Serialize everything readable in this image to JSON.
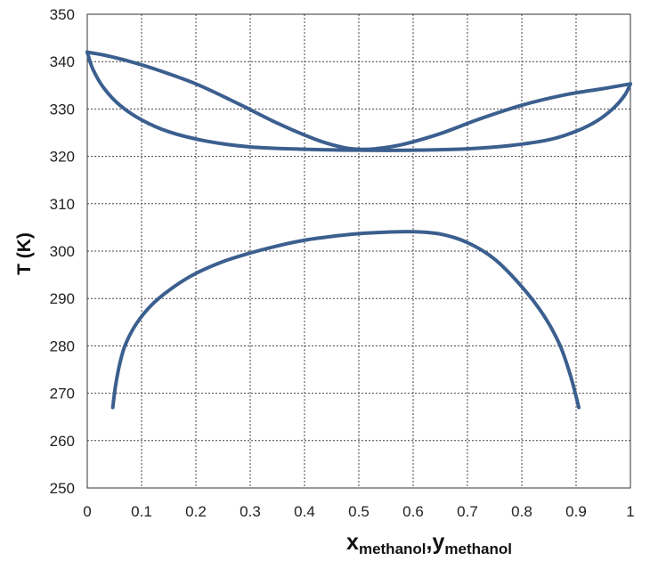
{
  "chart_data": {
    "type": "line",
    "title": "",
    "xlabel_main": "x",
    "xlabel_sub": "methanol",
    "xlabel_sep": ",",
    "xlabel_main2": "y",
    "xlabel_sub2": "methanol",
    "ylabel": "T (K)",
    "xlim": [
      0,
      1
    ],
    "ylim": [
      250,
      350
    ],
    "xticks": [
      0,
      0.1,
      0.2,
      0.3,
      0.4,
      0.5,
      0.6,
      0.7,
      0.8,
      0.9,
      1
    ],
    "xtick_labels": [
      "0",
      "0.1",
      "0.2",
      "0.3",
      "0.4",
      "0.5",
      "0.6",
      "0.7",
      "0.8",
      "0.9",
      "1"
    ],
    "yticks": [
      250,
      260,
      270,
      280,
      290,
      300,
      310,
      320,
      330,
      340,
      350
    ],
    "ytick_labels": [
      "250",
      "260",
      "270",
      "280",
      "290",
      "300",
      "310",
      "320",
      "330",
      "340",
      "350"
    ],
    "grid": true,
    "line_color": "#3b5f8e",
    "series": [
      {
        "points": [
          [
            0,
            342
          ],
          [
            0.03,
            341.4
          ],
          [
            0.07,
            340.3
          ],
          [
            0.12,
            338.6
          ],
          [
            0.2,
            335.3
          ],
          [
            0.28,
            331.0
          ],
          [
            0.35,
            327.0
          ],
          [
            0.42,
            323.6
          ],
          [
            0.47,
            321.9
          ],
          [
            0.5,
            321.5
          ],
          [
            0.53,
            321.6
          ],
          [
            0.58,
            322.5
          ],
          [
            0.65,
            324.8
          ],
          [
            0.72,
            327.8
          ],
          [
            0.8,
            330.8
          ],
          [
            0.88,
            333.0
          ],
          [
            0.95,
            334.3
          ],
          [
            1.0,
            335.3
          ]
        ]
      },
      {
        "points": [
          [
            0,
            342
          ],
          [
            0.01,
            338.5
          ],
          [
            0.03,
            334.5
          ],
          [
            0.06,
            330.8
          ],
          [
            0.1,
            327.7
          ],
          [
            0.15,
            325.2
          ],
          [
            0.22,
            323.2
          ],
          [
            0.3,
            322.0
          ],
          [
            0.4,
            321.5
          ],
          [
            0.5,
            321.3
          ],
          [
            0.6,
            321.3
          ],
          [
            0.7,
            321.6
          ],
          [
            0.78,
            322.3
          ],
          [
            0.85,
            323.5
          ],
          [
            0.9,
            325.3
          ],
          [
            0.94,
            327.6
          ],
          [
            0.97,
            330.3
          ],
          [
            0.99,
            333.0
          ],
          [
            1.0,
            335.3
          ]
        ]
      },
      {
        "points": [
          [
            0.047,
            267
          ],
          [
            0.052,
            271.5
          ],
          [
            0.06,
            276.3
          ],
          [
            0.07,
            280.2
          ],
          [
            0.09,
            284.6
          ],
          [
            0.12,
            288.8
          ],
          [
            0.16,
            292.5
          ],
          [
            0.2,
            295.3
          ],
          [
            0.25,
            297.8
          ],
          [
            0.3,
            299.6
          ],
          [
            0.35,
            301.1
          ],
          [
            0.4,
            302.3
          ],
          [
            0.45,
            303.1
          ],
          [
            0.5,
            303.7
          ],
          [
            0.55,
            304.0
          ],
          [
            0.6,
            304.1
          ],
          [
            0.65,
            303.6
          ],
          [
            0.7,
            301.8
          ],
          [
            0.75,
            298.3
          ],
          [
            0.8,
            292.5
          ],
          [
            0.84,
            286.5
          ],
          [
            0.87,
            280.2
          ],
          [
            0.89,
            273.6
          ],
          [
            0.905,
            267
          ]
        ]
      }
    ]
  }
}
